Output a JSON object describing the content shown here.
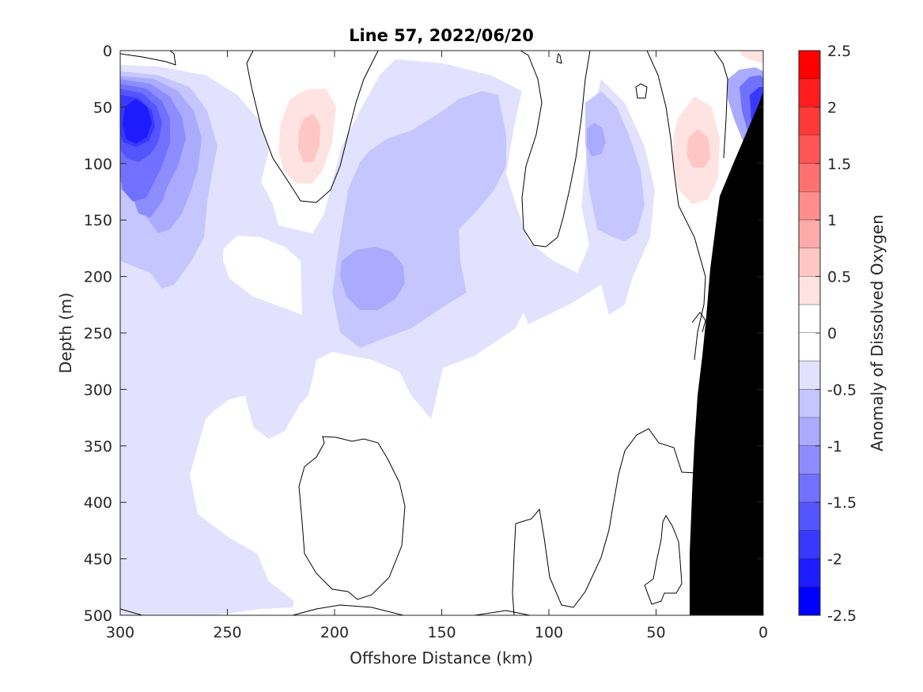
{
  "chart_data": {
    "type": "contour",
    "title": "Line 57, 2022/06/20",
    "xlabel": "Offshore Distance (km)",
    "ylabel": "Depth (m)",
    "xlim": [
      300,
      0
    ],
    "ylim": [
      500,
      0
    ],
    "x_ticks": [
      "300",
      "250",
      "200",
      "150",
      "100",
      "50",
      "0"
    ],
    "y_ticks": [
      "0",
      "50",
      "100",
      "150",
      "200",
      "250",
      "300",
      "350",
      "400",
      "450",
      "500"
    ],
    "colorbar": {
      "label": "Anomaly of Dissolved Oxygen",
      "range": [
        -2.5,
        2.5
      ],
      "tick_labels": [
        "2.5",
        "2",
        "1.5",
        "1",
        "0.5",
        "0",
        "-0.5",
        "-1",
        "-1.5",
        "-2",
        "-2.5"
      ],
      "levels": [
        {
          "lo": 2.25,
          "hi": 2.5,
          "color": "#ff0000"
        },
        {
          "lo": 2.0,
          "hi": 2.25,
          "color": "#ff1c1c"
        },
        {
          "lo": 1.75,
          "hi": 2.0,
          "color": "#ff3838"
        },
        {
          "lo": 1.5,
          "hi": 1.75,
          "color": "#ff5555"
        },
        {
          "lo": 1.25,
          "hi": 1.5,
          "color": "#ff7171"
        },
        {
          "lo": 1.0,
          "hi": 1.25,
          "color": "#ff8d8d"
        },
        {
          "lo": 0.75,
          "hi": 1.0,
          "color": "#ffaaaa"
        },
        {
          "lo": 0.5,
          "hi": 0.75,
          "color": "#ffc6c6"
        },
        {
          "lo": 0.25,
          "hi": 0.5,
          "color": "#ffe2e2"
        },
        {
          "lo": 0.0,
          "hi": 0.25,
          "color": "#ffffff"
        },
        {
          "lo": -0.25,
          "hi": 0.0,
          "color": "#ffffff"
        },
        {
          "lo": -0.5,
          "hi": -0.25,
          "color": "#e2e2ff"
        },
        {
          "lo": -0.75,
          "hi": -0.5,
          "color": "#c6c6ff"
        },
        {
          "lo": -1.0,
          "hi": -0.75,
          "color": "#aaaaff"
        },
        {
          "lo": -1.25,
          "hi": -1.0,
          "color": "#8d8dff"
        },
        {
          "lo": -1.5,
          "hi": -1.25,
          "color": "#7171ff"
        },
        {
          "lo": -1.75,
          "hi": -1.5,
          "color": "#5555ff"
        },
        {
          "lo": -2.0,
          "hi": -1.75,
          "color": "#3838ff"
        },
        {
          "lo": -2.25,
          "hi": -2.0,
          "color": "#1c1cff"
        },
        {
          "lo": -2.5,
          "hi": -2.25,
          "color": "#0000ff"
        }
      ]
    },
    "bathymetry_color": "#000000",
    "features": [
      {
        "name": "strong-negative-core",
        "x_km": 290,
        "depth_m": 80,
        "anomaly": -2.0
      },
      {
        "name": "negative-core-mid",
        "x_km": 180,
        "depth_m": 210,
        "anomaly": -0.9
      },
      {
        "name": "positive-anomaly-a",
        "x_km": 215,
        "depth_m": 80,
        "anomaly": 0.5
      },
      {
        "name": "positive-anomaly-b",
        "x_km": 30,
        "depth_m": 90,
        "anomaly": 0.5
      },
      {
        "name": "nearshore-negative",
        "x_km": 5,
        "depth_m": 70,
        "anomaly": -1.8
      }
    ]
  }
}
